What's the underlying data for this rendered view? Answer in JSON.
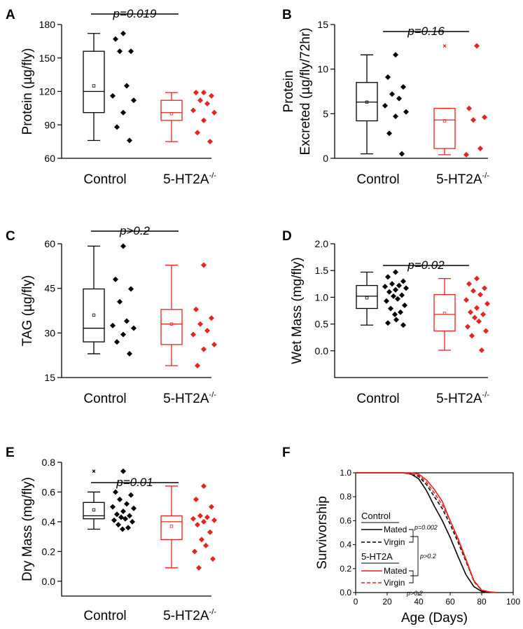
{
  "colors": {
    "control": "#000000",
    "mutant": "#e8231e"
  },
  "chart_data": [
    {
      "panel": "A",
      "type": "box",
      "ylabel": "Protein (µg/fly)",
      "ylim": [
        60,
        180
      ],
      "yticks": [
        60,
        90,
        120,
        150,
        180
      ],
      "categories": [
        "Control",
        "5-HT2A"
      ],
      "cat_sup": "-/-",
      "pvalue": "p=0.019",
      "series": [
        {
          "name": "Control",
          "q1": 101,
          "median": 120,
          "q3": 156,
          "whisker_low": 76,
          "whisker_high": 172,
          "mean": 125,
          "outliers": [],
          "points": [
            172,
            167,
            156,
            156,
            125,
            116,
            112,
            101,
            88,
            76
          ]
        },
        {
          "name": "5-HT2A",
          "q1": 94,
          "median": 101,
          "q3": 112,
          "whisker_low": 75,
          "whisker_high": 119,
          "mean": 100,
          "outliers": [],
          "points": [
            119,
            119,
            116,
            112,
            109,
            103,
            101,
            94,
            83,
            75
          ]
        }
      ]
    },
    {
      "panel": "B",
      "type": "box",
      "ylabel": [
        "Protein",
        "Excreted (µg/fly/72hr)"
      ],
      "ylim": [
        0,
        15
      ],
      "yticks": [
        0,
        5,
        10,
        15
      ],
      "categories": [
        "Control",
        "5-HT2A"
      ],
      "cat_sup": "-/-",
      "pvalue": "p=0.16",
      "series": [
        {
          "name": "Control",
          "q1": 4.2,
          "median": 6.3,
          "q3": 8.5,
          "whisker_low": 0.5,
          "whisker_high": 11.6,
          "mean": 6.3,
          "outliers": [],
          "points": [
            11.6,
            9.1,
            8.0,
            7.2,
            6.7,
            5.9,
            5.2,
            4.7,
            2.8,
            0.5
          ]
        },
        {
          "name": "5-HT2A",
          "q1": 1.1,
          "median": 4.3,
          "q3": 5.6,
          "whisker_low": 0.4,
          "whisker_high": 5.6,
          "mean": 4.2,
          "outliers": [
            12.6
          ],
          "points": [
            12.6,
            5.6,
            4.6,
            4.3,
            1.1,
            0.4
          ]
        }
      ]
    },
    {
      "panel": "C",
      "type": "box",
      "ylabel": "TAG (µg/fly)",
      "ylim": [
        15,
        60
      ],
      "yticks": [
        15,
        30,
        45,
        60
      ],
      "categories": [
        "Control",
        "5-HT2A"
      ],
      "cat_sup": "-/-",
      "pvalue": "p>0.2",
      "series": [
        {
          "name": "Control",
          "q1": 27,
          "median": 31.6,
          "q3": 44.8,
          "whisker_low": 23,
          "whisker_high": 59.2,
          "mean": 36,
          "outliers": [],
          "points": [
            59.2,
            48,
            44.8,
            40.5,
            34,
            32.5,
            31.6,
            29.5,
            27,
            23
          ]
        },
        {
          "name": "5-HT2A",
          "q1": 26.1,
          "median": 33,
          "q3": 37.9,
          "whisker_low": 19,
          "whisker_high": 52.8,
          "mean": 33,
          "outliers": [],
          "points": [
            52.8,
            37.9,
            35,
            33,
            30.8,
            29.5,
            26.1,
            24.5,
            19
          ]
        }
      ]
    },
    {
      "panel": "D",
      "type": "box",
      "ylabel": "Wet Mass (mg/fly)",
      "ylim": [
        -0.5,
        2.0
      ],
      "yticks": [
        0.0,
        0.5,
        1.0,
        1.5,
        2.0
      ],
      "categories": [
        "Control",
        "5-HT2A"
      ],
      "cat_sup": "-/-",
      "pvalue": "p=0.02",
      "series": [
        {
          "name": "Control",
          "q1": 0.79,
          "median": 1.02,
          "q3": 1.22,
          "whisker_low": 0.48,
          "whisker_high": 1.47,
          "mean": 0.99,
          "outliers": [],
          "points": [
            1.47,
            1.38,
            1.3,
            1.25,
            1.22,
            1.2,
            1.17,
            1.14,
            1.1,
            1.04,
            1.02,
            0.97,
            0.93,
            0.85,
            0.79,
            0.72,
            0.68,
            0.58,
            0.52,
            0.48
          ]
        },
        {
          "name": "5-HT2A",
          "q1": 0.37,
          "median": 0.68,
          "q3": 1.05,
          "whisker_low": 0.01,
          "whisker_high": 1.35,
          "mean": 0.7,
          "outliers": [],
          "points": [
            1.35,
            1.25,
            1.17,
            1.12,
            1.05,
            0.95,
            0.88,
            0.8,
            0.72,
            0.68,
            0.62,
            0.55,
            0.45,
            0.37,
            0.28,
            0.01
          ]
        }
      ]
    },
    {
      "panel": "E",
      "type": "box",
      "ylabel": "Dry Mass (mg/fly)",
      "ylim": [
        -0.1,
        0.8
      ],
      "yticks": [
        0.0,
        0.2,
        0.4,
        0.6,
        0.8
      ],
      "categories": [
        "Control",
        "5-HT2A"
      ],
      "cat_sup": "-/-",
      "pvalue": "p=0.01",
      "series": [
        {
          "name": "Control",
          "q1": 0.42,
          "median": 0.44,
          "q3": 0.53,
          "whisker_low": 0.35,
          "whisker_high": 0.6,
          "mean": 0.48,
          "outliers": [
            0.74
          ],
          "points": [
            0.74,
            0.6,
            0.58,
            0.55,
            0.52,
            0.5,
            0.49,
            0.47,
            0.45,
            0.44,
            0.43,
            0.42,
            0.41,
            0.4,
            0.38,
            0.36,
            0.35
          ]
        },
        {
          "name": "5-HT2A",
          "q1": 0.28,
          "median": 0.4,
          "q3": 0.44,
          "whisker_low": 0.09,
          "whisker_high": 0.64,
          "mean": 0.37,
          "outliers": [],
          "points": [
            0.64,
            0.55,
            0.5,
            0.44,
            0.43,
            0.42,
            0.41,
            0.4,
            0.38,
            0.33,
            0.28,
            0.24,
            0.2,
            0.15,
            0.09
          ]
        }
      ]
    },
    {
      "panel": "F",
      "type": "line",
      "xlabel": "Age (Days)",
      "ylabel": "Survivorship",
      "xlim": [
        0,
        100
      ],
      "ylim": [
        0.0,
        1.0
      ],
      "xticks": [
        0,
        20,
        40,
        60,
        80,
        100
      ],
      "yticks": [
        0.0,
        0.2,
        0.4,
        0.6,
        0.8,
        1.0
      ],
      "series": [
        {
          "name": "Control Mated",
          "color": "#000000",
          "dash": false,
          "x": [
            0,
            30,
            35,
            40,
            45,
            50,
            55,
            60,
            65,
            70,
            75,
            80,
            85
          ],
          "y": [
            1.0,
            1.0,
            0.99,
            0.95,
            0.85,
            0.72,
            0.6,
            0.46,
            0.3,
            0.15,
            0.05,
            0.01,
            0.0
          ]
        },
        {
          "name": "Control Virgin",
          "color": "#000000",
          "dash": true,
          "x": [
            0,
            30,
            35,
            40,
            45,
            50,
            55,
            60,
            65,
            70,
            75,
            80,
            85,
            90
          ],
          "y": [
            1.0,
            1.0,
            0.99,
            0.97,
            0.9,
            0.8,
            0.7,
            0.57,
            0.42,
            0.26,
            0.1,
            0.02,
            0.005,
            0.0
          ]
        },
        {
          "name": "5-HT2A Mated",
          "color": "#e8231e",
          "dash": false,
          "x": [
            0,
            30,
            35,
            40,
            45,
            50,
            55,
            60,
            65,
            70,
            75,
            80,
            85,
            90
          ],
          "y": [
            1.0,
            1.0,
            1.0,
            0.99,
            0.94,
            0.86,
            0.76,
            0.6,
            0.45,
            0.28,
            0.1,
            0.02,
            0.005,
            0.0
          ]
        },
        {
          "name": "5-HT2A Virgin",
          "color": "#e8231e",
          "dash": true,
          "x": [
            0,
            30,
            35,
            40,
            45,
            50,
            55,
            60,
            65,
            70,
            75,
            80,
            85,
            90
          ],
          "y": [
            1.0,
            1.0,
            0.99,
            0.98,
            0.92,
            0.83,
            0.73,
            0.6,
            0.44,
            0.27,
            0.09,
            0.02,
            0.005,
            0.0
          ]
        }
      ],
      "legend": {
        "group1": "Control",
        "group2": "5-HT2A",
        "mated": "Mated",
        "virgin": "Virgin",
        "p1": "p=0.002",
        "p2": "p>0.2",
        "p3": "p>0.2"
      }
    }
  ]
}
